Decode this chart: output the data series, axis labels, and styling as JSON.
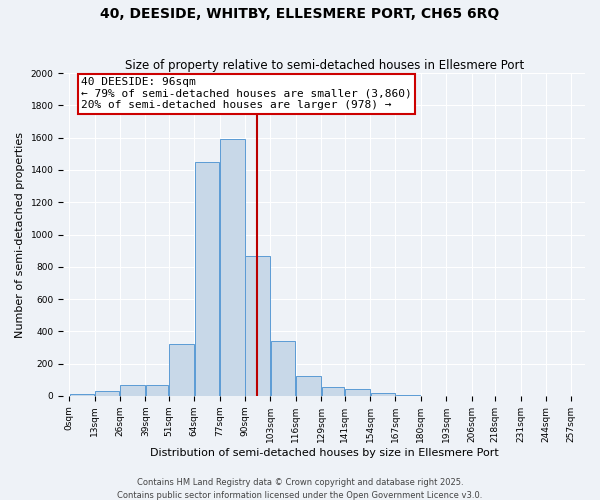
{
  "title": "40, DEESIDE, WHITBY, ELLESMERE PORT, CH65 6RQ",
  "subtitle": "Size of property relative to semi-detached houses in Ellesmere Port",
  "xlabel": "Distribution of semi-detached houses by size in Ellesmere Port",
  "ylabel": "Number of semi-detached properties",
  "bar_left_edges": [
    0,
    13,
    26,
    39,
    51,
    64,
    77,
    90,
    103,
    116,
    129,
    141,
    154,
    167,
    180,
    193,
    206,
    218,
    231,
    244
  ],
  "bar_values": [
    10,
    30,
    65,
    70,
    320,
    1450,
    1590,
    865,
    340,
    120,
    55,
    40,
    20,
    5,
    0,
    0,
    0,
    0,
    0,
    0
  ],
  "bar_widths": [
    13,
    13,
    13,
    12,
    13,
    13,
    13,
    13,
    13,
    13,
    12,
    13,
    13,
    13,
    13,
    13,
    12,
    13,
    13,
    13
  ],
  "bar_color": "#c8d8e8",
  "bar_edgecolor": "#5b9bd5",
  "property_size": 96,
  "red_line_color": "#bb0000",
  "annotation_line1": "40 DEESIDE: 96sqm",
  "annotation_line2": "← 79% of semi-detached houses are smaller (3,860)",
  "annotation_line3": "20% of semi-detached houses are larger (978) →",
  "annotation_box_edgecolor": "#cc0000",
  "annotation_box_facecolor": "#ffffff",
  "ylim": [
    0,
    2000
  ],
  "yticks": [
    0,
    200,
    400,
    600,
    800,
    1000,
    1200,
    1400,
    1600,
    1800,
    2000
  ],
  "xtick_positions": [
    0,
    13,
    26,
    39,
    51,
    64,
    77,
    90,
    103,
    116,
    129,
    141,
    154,
    167,
    180,
    193,
    206,
    218,
    231,
    244,
    257
  ],
  "xtick_labels": [
    "0sqm",
    "13sqm",
    "26sqm",
    "39sqm",
    "51sqm",
    "64sqm",
    "77sqm",
    "90sqm",
    "103sqm",
    "116sqm",
    "129sqm",
    "141sqm",
    "154sqm",
    "167sqm",
    "180sqm",
    "193sqm",
    "206sqm",
    "218sqm",
    "231sqm",
    "244sqm",
    "257sqm"
  ],
  "background_color": "#eef2f7",
  "grid_color": "#ffffff",
  "footer_line1": "Contains HM Land Registry data © Crown copyright and database right 2025.",
  "footer_line2": "Contains public sector information licensed under the Open Government Licence v3.0.",
  "title_fontsize": 10,
  "subtitle_fontsize": 8.5,
  "axis_label_fontsize": 8,
  "tick_fontsize": 6.5,
  "footer_fontsize": 6,
  "annotation_fontsize": 8
}
